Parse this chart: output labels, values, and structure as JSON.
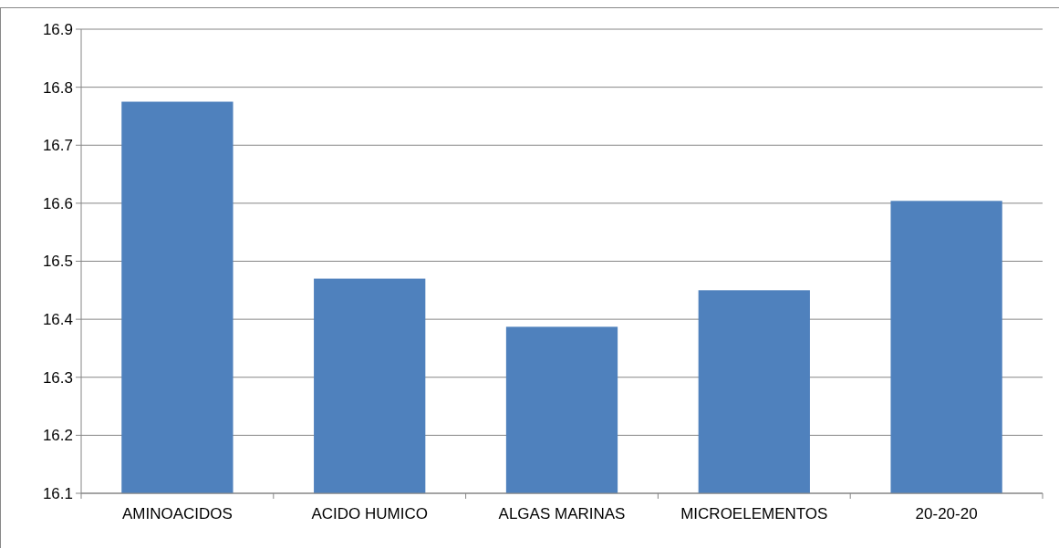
{
  "chart_data": {
    "type": "bar",
    "categories": [
      "AMINOACIDOS",
      "ACIDO HUMICO",
      "ALGAS MARINAS",
      "MICROELEMENTOS",
      "20-20-20"
    ],
    "values": [
      16.775,
      16.47,
      16.387,
      16.45,
      16.604
    ],
    "color": "#4f81bd",
    "ylim": [
      16.1,
      16.9
    ],
    "yticks": [
      {
        "value": 16.1,
        "label": "16.1"
      },
      {
        "value": 16.2,
        "label": "16.2"
      },
      {
        "value": 16.3,
        "label": "16.3"
      },
      {
        "value": 16.4,
        "label": "16.4"
      },
      {
        "value": 16.5,
        "label": "16.5"
      },
      {
        "value": 16.6,
        "label": "16.6"
      },
      {
        "value": 16.7,
        "label": "16.7"
      },
      {
        "value": 16.8,
        "label": "16.8"
      },
      {
        "value": 16.9,
        "label": "16.9"
      }
    ],
    "grid": "y"
  }
}
